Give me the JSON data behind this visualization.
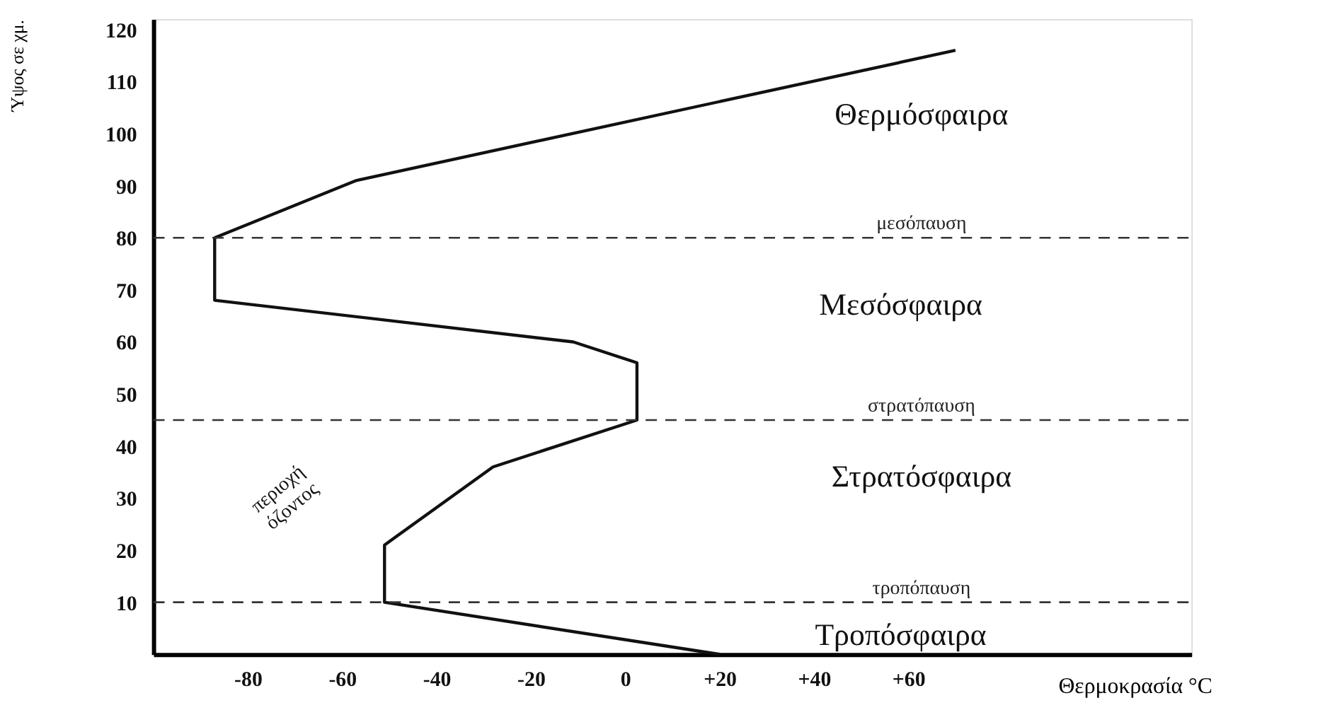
{
  "chart_data": {
    "type": "line",
    "xlabel": "Θερμοκρασία °C",
    "ylabel": "Ύψος σε χμ.",
    "series": [
      {
        "color": "#111111",
        "x": [
          20,
          -51,
          -51,
          -28,
          2.5,
          2.5,
          -11,
          -87,
          -87,
          -57,
          70
        ],
        "values": [
          0,
          10,
          21,
          36,
          45,
          56,
          60,
          68,
          80,
          91,
          116
        ]
      }
    ],
    "xlim": [
      -100,
      120
    ],
    "xticks": [
      -80,
      -60,
      -40,
      -20,
      0,
      {
        "value": 20,
        "label": "+20"
      },
      {
        "value": 40,
        "label": "+40"
      },
      {
        "value": 60,
        "label": "+60"
      }
    ],
    "ylim": [
      0,
      122
    ],
    "yticks": [
      10,
      20,
      30,
      40,
      50,
      60,
      70,
      80,
      90,
      100,
      110,
      120
    ],
    "ref_lines": [
      {
        "axis": "y",
        "value": 80,
        "label": "μεσόπαυση",
        "color": "#333333",
        "line_style": "dashed"
      },
      {
        "axis": "y",
        "value": 45,
        "label": "στρατόπαυση",
        "color": "#333333",
        "line_style": "dashed"
      },
      {
        "axis": "y",
        "value": 10,
        "label": "τροπόπαυση",
        "color": "#333333",
        "line_style": "dashed"
      }
    ],
    "annotations": [
      "Θερμόσφαιρα",
      "Μεσόσφαιρα",
      "Στρατόσφαιρα",
      "Τροπόσφαιρα",
      "περιοχή\nόζοντος"
    ],
    "grid": false,
    "marker": "none",
    "line_style": "solid"
  }
}
